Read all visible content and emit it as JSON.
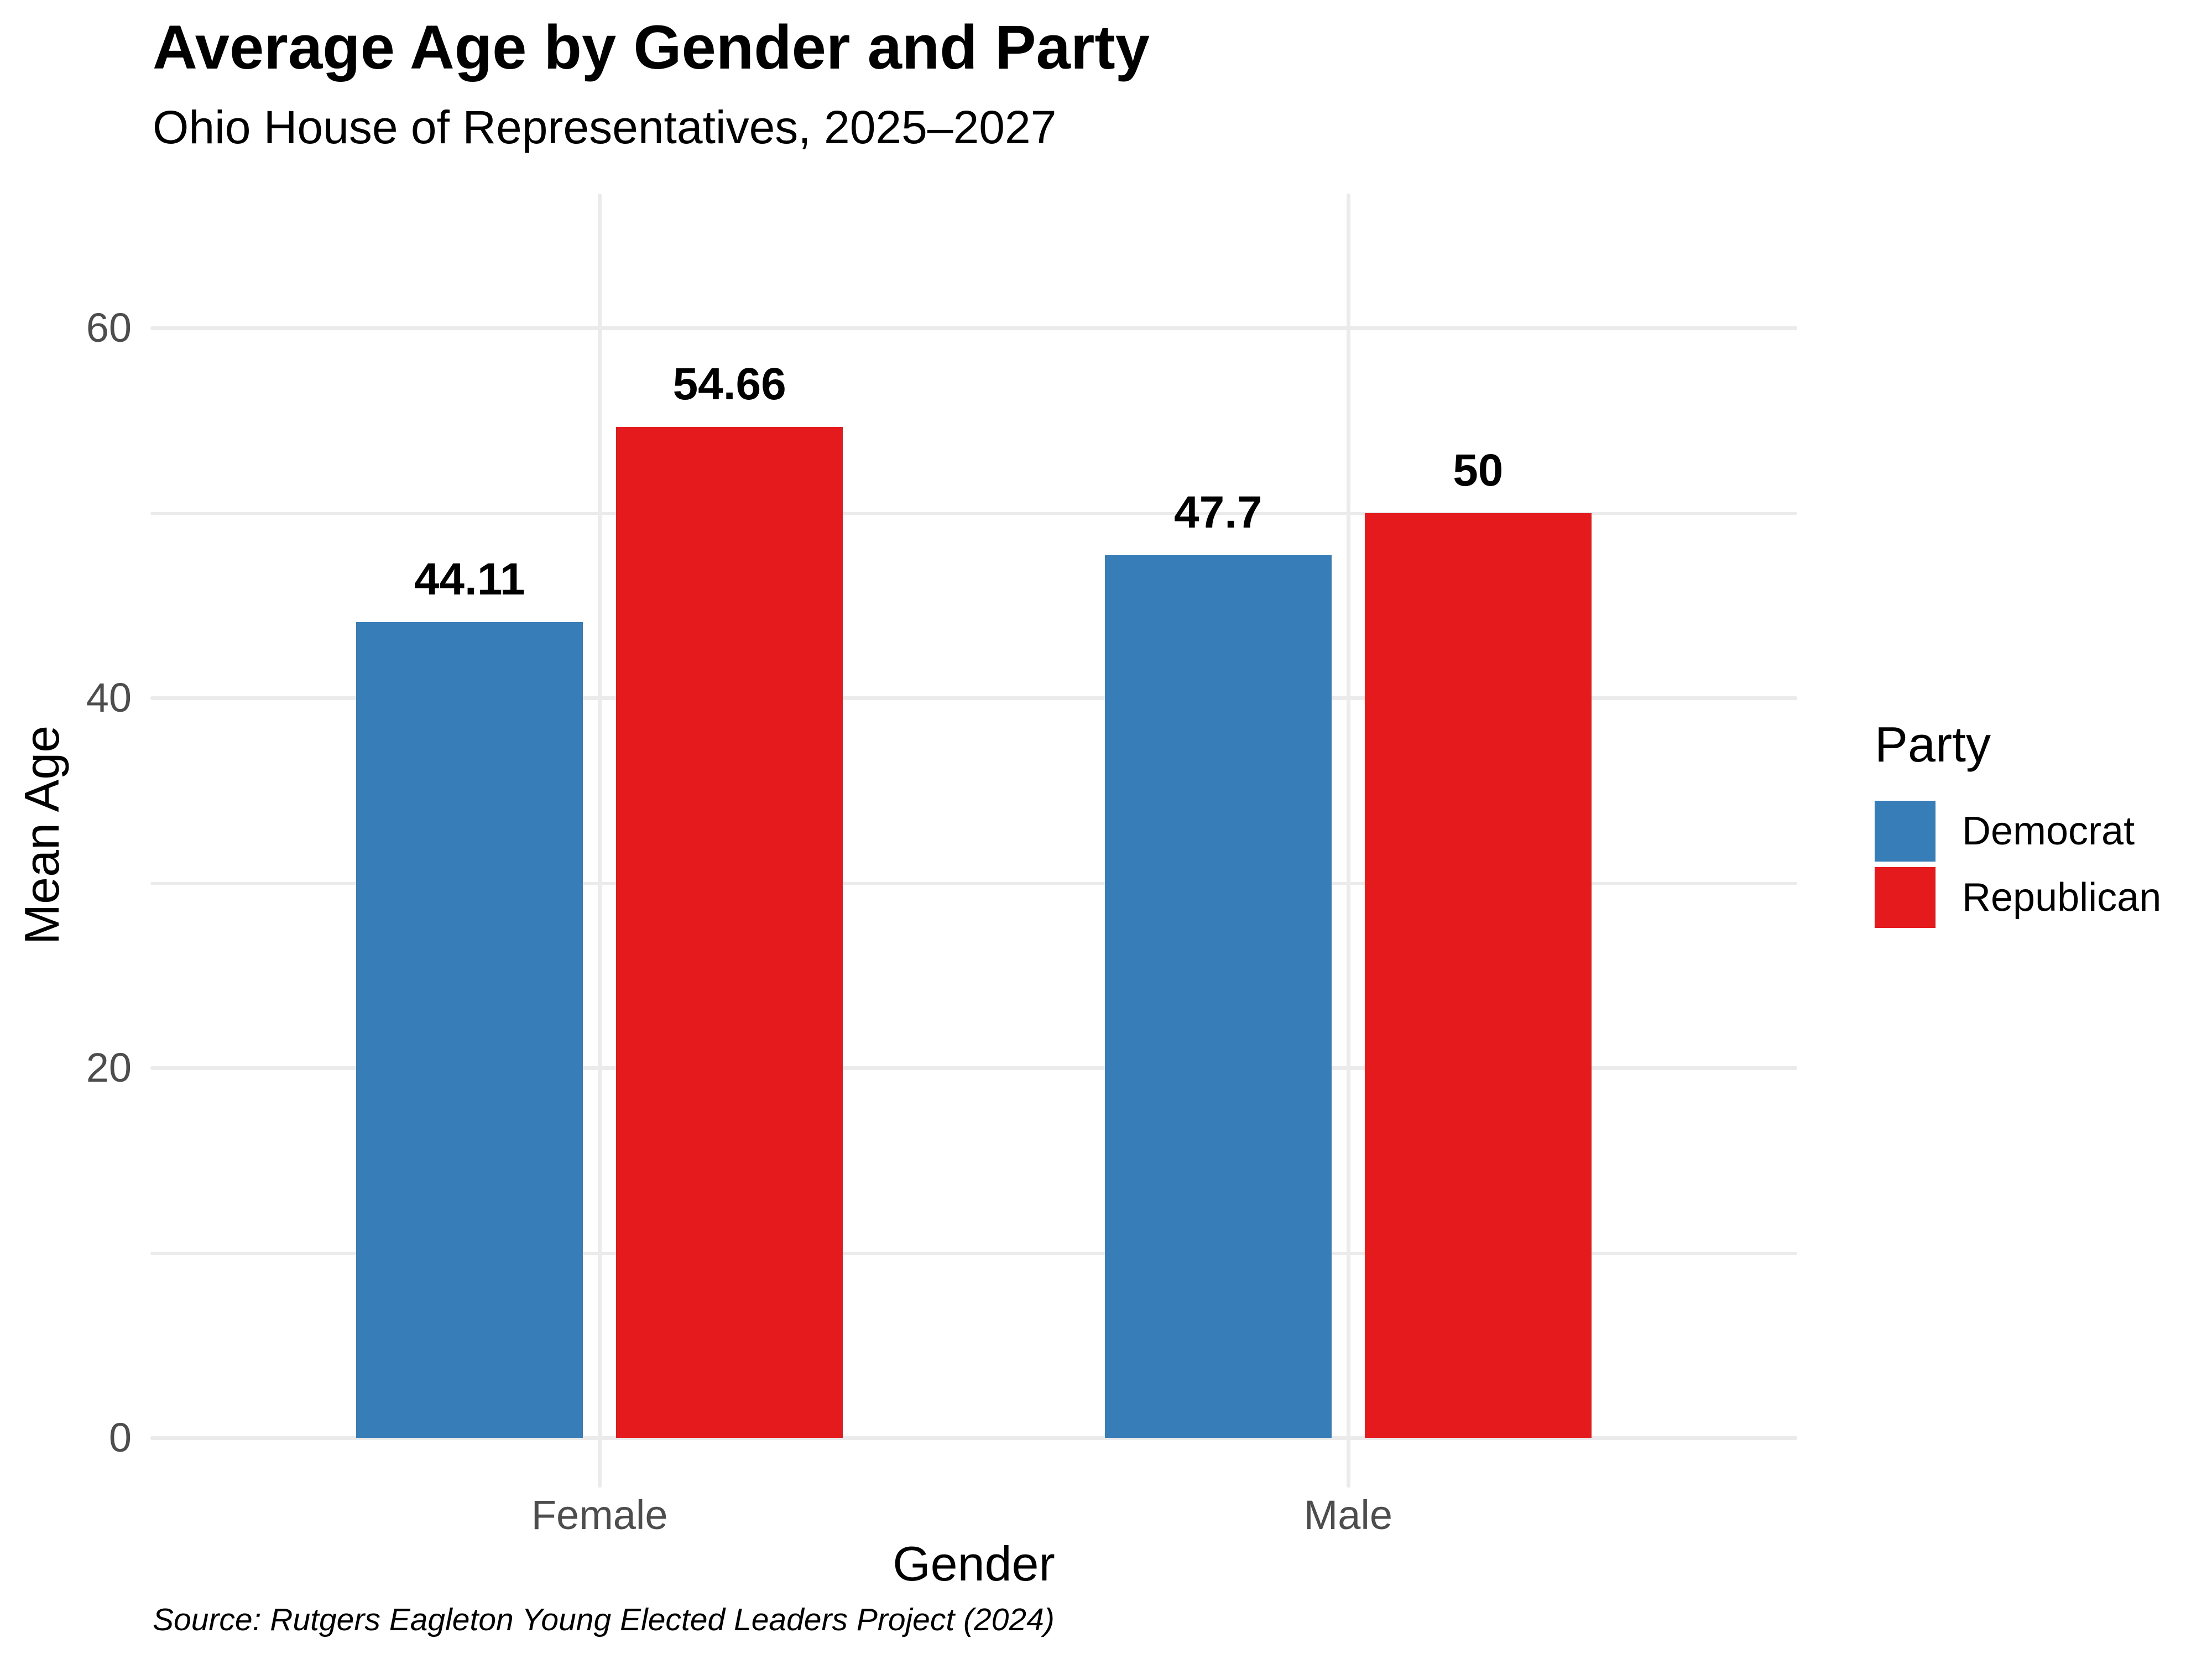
{
  "title": "Average Age by Gender and Party",
  "subtitle": "Ohio House of Representatives, 2025–2027",
  "source_note": "Source: Rutgers Eagleton Young Elected Leaders Project (2024)",
  "chart_data": {
    "type": "bar",
    "categories": [
      "Female",
      "Male"
    ],
    "series": [
      {
        "name": "Democrat",
        "color": "#377EB8",
        "values": [
          44.11,
          47.7
        ],
        "labels": [
          "44.11",
          "47.7"
        ]
      },
      {
        "name": "Republican",
        "color": "#E41A1C",
        "values": [
          54.66,
          50
        ],
        "labels": [
          "54.66",
          "50"
        ]
      }
    ],
    "xlabel": "Gender",
    "ylabel": "Mean Age",
    "ylim": [
      0,
      60
    ],
    "yticks": [
      "0",
      "20",
      "40",
      "60"
    ],
    "ytick_values": [
      0,
      20,
      40,
      60
    ],
    "minor_grid_values": [
      10,
      30,
      50
    ],
    "grid": true,
    "legend": {
      "title": "Party",
      "position": "right",
      "entries": [
        "Democrat",
        "Republican"
      ]
    }
  },
  "style": {
    "background": "#FFFFFF",
    "grid_color": "#EBEBEB",
    "tick_label_color": "#4D4D4D",
    "bar_label_color": "#000000",
    "text_color": "#000000"
  }
}
